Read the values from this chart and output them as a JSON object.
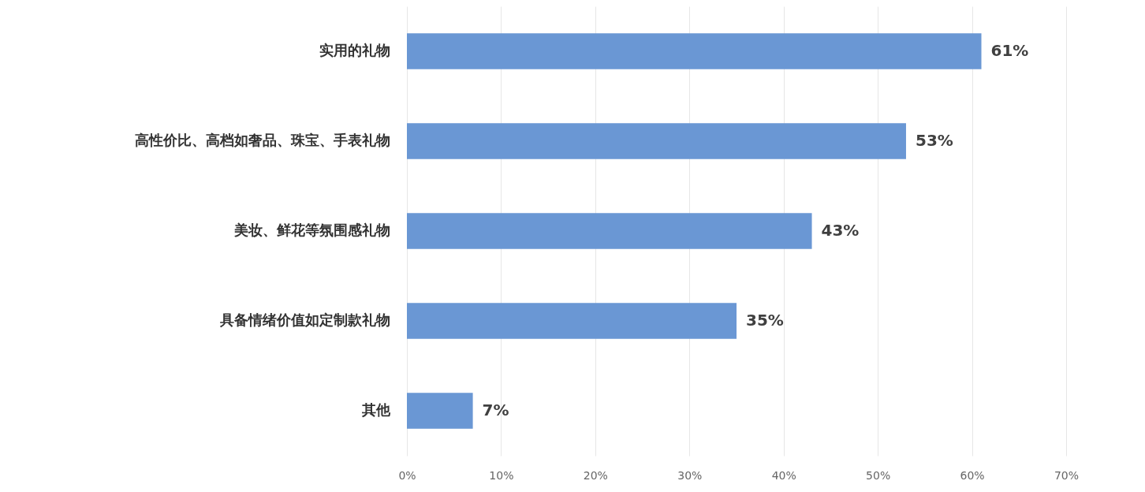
{
  "chart_data": {
    "type": "bar",
    "orientation": "horizontal",
    "categories": [
      "实用的礼物",
      "高性价比、高档如奢品、珠宝、手表礼物",
      "美妆、鲜花等氛围感礼物",
      "具备情绪价值如定制款礼物",
      "其他"
    ],
    "values": [
      61,
      53,
      43,
      35,
      7
    ],
    "value_labels": [
      "61%",
      "53%",
      "43%",
      "35%",
      "7%"
    ],
    "color": "#6a97d4",
    "xlim": [
      0,
      70
    ],
    "xticks": [
      {
        "value": 0,
        "label": "0%"
      },
      {
        "value": 10,
        "label": "10%"
      },
      {
        "value": 20,
        "label": "20%"
      },
      {
        "value": 30,
        "label": "30%"
      },
      {
        "value": 40,
        "label": "40%"
      },
      {
        "value": 50,
        "label": "50%"
      },
      {
        "value": 60,
        "label": "60%"
      },
      {
        "value": 70,
        "label": "70%"
      }
    ],
    "grid": "x"
  }
}
